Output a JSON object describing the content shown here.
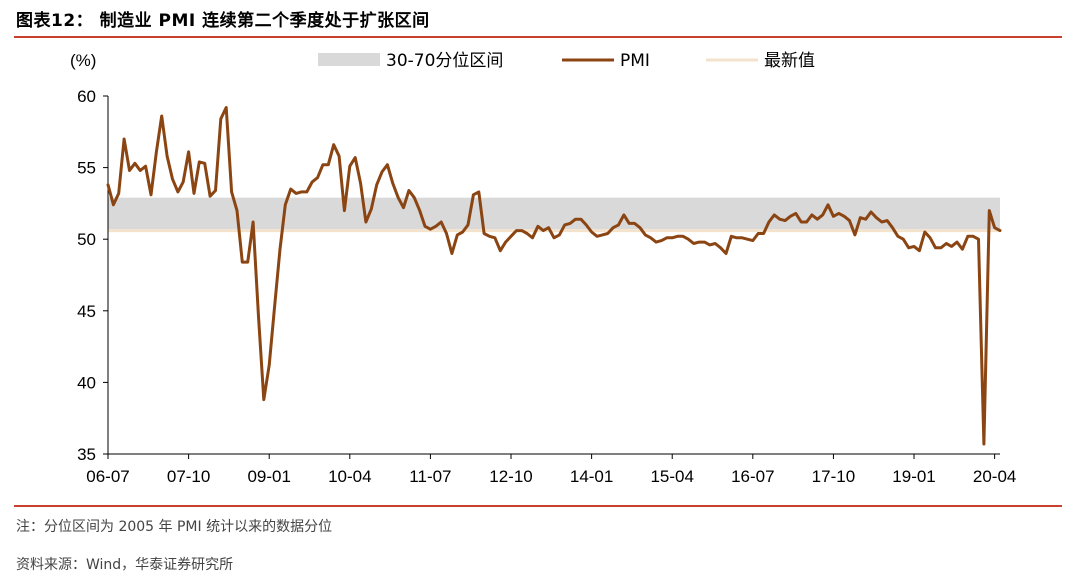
{
  "header": {
    "title": "图表12： 制造业 PMI 连续第二个季度处于扩张区间"
  },
  "footer": {
    "note": "注：分位区间为 2005 年 PMI 统计以来的数据分位",
    "source": "资料来源：Wind，华泰证券研究所"
  },
  "colors": {
    "accent_rule": "#c8402e",
    "pmi_line": "#8b4513",
    "band": "#d9d9d9",
    "latest_line": "#f3e3cc"
  },
  "chart_data": {
    "type": "line",
    "ylabel": "(%)",
    "ylim": [
      35,
      60
    ],
    "yticks": [
      35,
      40,
      45,
      50,
      55,
      60
    ],
    "xticklabels": [
      "06-07",
      "07-10",
      "09-01",
      "10-04",
      "11-07",
      "12-10",
      "14-01",
      "15-04",
      "16-07",
      "17-10",
      "19-01",
      "20-04"
    ],
    "x_start": "2006-07",
    "x_end": "2020-05",
    "legend": [
      "30-70分位区间",
      "PMI",
      "最新值"
    ],
    "band": [
      50.7,
      52.9
    ],
    "latest_value": 50.6,
    "series": [
      {
        "name": "PMI",
        "x": [
          "2006-07",
          "2006-08",
          "2006-09",
          "2006-10",
          "2006-11",
          "2006-12",
          "2007-01",
          "2007-02",
          "2007-03",
          "2007-04",
          "2007-05",
          "2007-06",
          "2007-07",
          "2007-08",
          "2007-09",
          "2007-10",
          "2007-11",
          "2007-12",
          "2008-01",
          "2008-02",
          "2008-03",
          "2008-04",
          "2008-05",
          "2008-06",
          "2008-07",
          "2008-08",
          "2008-09",
          "2008-10",
          "2008-11",
          "2008-12",
          "2009-01",
          "2009-02",
          "2009-03",
          "2009-04",
          "2009-05",
          "2009-06",
          "2009-07",
          "2009-08",
          "2009-09",
          "2009-10",
          "2009-11",
          "2009-12",
          "2010-01",
          "2010-02",
          "2010-03",
          "2010-04",
          "2010-05",
          "2010-06",
          "2010-07",
          "2010-08",
          "2010-09",
          "2010-10",
          "2010-11",
          "2010-12",
          "2011-01",
          "2011-02",
          "2011-03",
          "2011-04",
          "2011-05",
          "2011-06",
          "2011-07",
          "2011-08",
          "2011-09",
          "2011-10",
          "2011-11",
          "2011-12",
          "2012-01",
          "2012-02",
          "2012-03",
          "2012-04",
          "2012-05",
          "2012-06",
          "2012-07",
          "2012-08",
          "2012-09",
          "2012-10",
          "2012-11",
          "2012-12",
          "2013-01",
          "2013-02",
          "2013-03",
          "2013-04",
          "2013-05",
          "2013-06",
          "2013-07",
          "2013-08",
          "2013-09",
          "2013-10",
          "2013-11",
          "2013-12",
          "2014-01",
          "2014-02",
          "2014-03",
          "2014-04",
          "2014-05",
          "2014-06",
          "2014-07",
          "2014-08",
          "2014-09",
          "2014-10",
          "2014-11",
          "2014-12",
          "2015-01",
          "2015-02",
          "2015-03",
          "2015-04",
          "2015-05",
          "2015-06",
          "2015-07",
          "2015-08",
          "2015-09",
          "2015-10",
          "2015-11",
          "2015-12",
          "2016-01",
          "2016-02",
          "2016-03",
          "2016-04",
          "2016-05",
          "2016-06",
          "2016-07",
          "2016-08",
          "2016-09",
          "2016-10",
          "2016-11",
          "2016-12",
          "2017-01",
          "2017-02",
          "2017-03",
          "2017-04",
          "2017-05",
          "2017-06",
          "2017-07",
          "2017-08",
          "2017-09",
          "2017-10",
          "2017-11",
          "2017-12",
          "2018-01",
          "2018-02",
          "2018-03",
          "2018-04",
          "2018-05",
          "2018-06",
          "2018-07",
          "2018-08",
          "2018-09",
          "2018-10",
          "2018-11",
          "2018-12",
          "2019-01",
          "2019-02",
          "2019-03",
          "2019-04",
          "2019-05",
          "2019-06",
          "2019-07",
          "2019-08",
          "2019-09",
          "2019-10",
          "2019-11",
          "2019-12",
          "2020-01",
          "2020-02",
          "2020-03",
          "2020-04",
          "2020-05"
        ],
        "values": [
          53.8,
          52.4,
          53.2,
          57.0,
          54.8,
          55.3,
          54.8,
          55.1,
          53.1,
          56.1,
          58.6,
          55.8,
          54.2,
          53.3,
          54.0,
          56.1,
          53.2,
          55.4,
          55.3,
          53.0,
          53.4,
          58.4,
          59.2,
          53.3,
          52.0,
          48.4,
          48.4,
          51.2,
          44.6,
          38.8,
          41.2,
          45.3,
          49.3,
          52.4,
          53.5,
          53.2,
          53.3,
          53.3,
          54.0,
          54.3,
          55.2,
          55.2,
          56.6,
          55.8,
          52.0,
          55.1,
          55.7,
          53.9,
          51.2,
          52.1,
          53.8,
          54.7,
          55.2,
          53.9,
          52.9,
          52.2,
          53.4,
          52.9,
          52.0,
          50.9,
          50.7,
          50.9,
          51.2,
          50.4,
          49.0,
          50.3,
          50.5,
          51.0,
          53.1,
          53.3,
          50.4,
          50.2,
          50.1,
          49.2,
          49.8,
          50.2,
          50.6,
          50.6,
          50.4,
          50.1,
          50.9,
          50.6,
          50.8,
          50.1,
          50.3,
          51.0,
          51.1,
          51.4,
          51.4,
          51.0,
          50.5,
          50.2,
          50.3,
          50.4,
          50.8,
          51.0,
          51.7,
          51.1,
          51.1,
          50.8,
          50.3,
          50.1,
          49.8,
          49.9,
          50.1,
          50.1,
          50.2,
          50.2,
          50.0,
          49.7,
          49.8,
          49.8,
          49.6,
          49.7,
          49.4,
          49.0,
          50.2,
          50.1,
          50.1,
          50.0,
          49.9,
          50.4,
          50.4,
          51.2,
          51.7,
          51.4,
          51.3,
          51.6,
          51.8,
          51.2,
          51.2,
          51.7,
          51.4,
          51.7,
          52.4,
          51.6,
          51.8,
          51.6,
          51.3,
          50.3,
          51.5,
          51.4,
          51.9,
          51.5,
          51.2,
          51.3,
          50.8,
          50.2,
          50.0,
          49.4,
          49.5,
          49.2,
          50.5,
          50.1,
          49.4,
          49.4,
          49.7,
          49.5,
          49.8,
          49.3,
          50.2,
          50.2,
          50.0,
          35.7,
          52.0,
          50.8,
          50.6
        ]
      }
    ]
  }
}
